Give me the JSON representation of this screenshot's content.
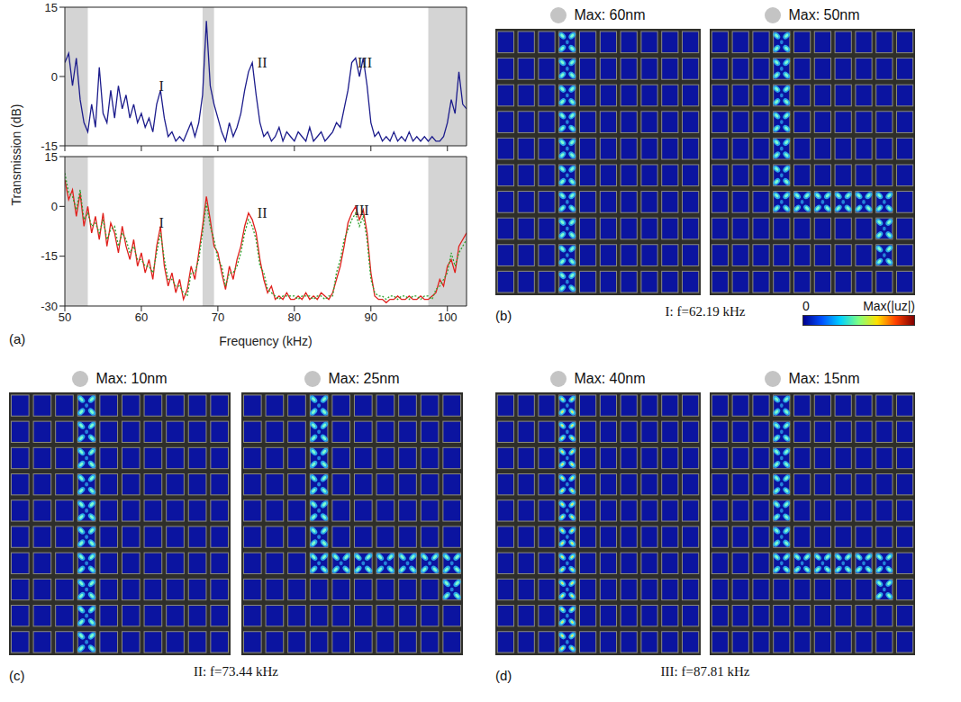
{
  "chart_data": [
    {
      "type": "line",
      "x": [
        50,
        50.5,
        51,
        51.5,
        52,
        52.5,
        53,
        53.5,
        54,
        54.5,
        55,
        55.5,
        56,
        56.5,
        57,
        57.5,
        58,
        58.5,
        59,
        59.5,
        60,
        60.5,
        61,
        61.5,
        62,
        62.5,
        63,
        63.5,
        64,
        64.5,
        65,
        65.5,
        66,
        66.5,
        67,
        67.5,
        68,
        68.5,
        69,
        69.5,
        70,
        70.5,
        71,
        71.5,
        72,
        72.5,
        73,
        73.5,
        74,
        74.5,
        75,
        75.5,
        76,
        76.5,
        77,
        77.5,
        78,
        78.5,
        79,
        79.5,
        80,
        80.5,
        81,
        81.5,
        82,
        82.5,
        83,
        83.5,
        84,
        84.5,
        85,
        85.5,
        86,
        86.5,
        87,
        87.5,
        88,
        88.5,
        89,
        89.5,
        90,
        90.5,
        91,
        91.5,
        92,
        92.5,
        93,
        93.5,
        94,
        94.5,
        95,
        95.5,
        96,
        96.5,
        97,
        97.5,
        98,
        98.5,
        99,
        99.5,
        100,
        100.5,
        101,
        101.5,
        102,
        102.5
      ],
      "series": [
        {
          "color": "#1c1c8c",
          "line_style": "solid",
          "values": [
            3,
            5,
            -2,
            4,
            -5,
            -10,
            -12,
            -6,
            -11,
            2,
            -8,
            -10,
            -3,
            -9,
            -2,
            -7,
            -4,
            -9,
            -6,
            -10,
            -8,
            -11,
            -9,
            -12,
            -6,
            -3,
            -9,
            -13,
            -12,
            -14,
            -13,
            -14,
            -12,
            -10,
            -13,
            -10,
            -4,
            12,
            -2,
            -6,
            -9,
            -12,
            -14,
            -10,
            -13,
            -11,
            -8,
            -3,
            1,
            3,
            -4,
            -10,
            -13,
            -12,
            -14,
            -13,
            -11,
            -14,
            -12,
            -13,
            -14,
            -12,
            -13,
            -14,
            -11,
            -14,
            -13,
            -12,
            -14,
            -13,
            -12,
            -10,
            -11,
            -7,
            -3,
            3,
            4,
            0,
            4,
            -2,
            -10,
            -13,
            -12,
            -14,
            -13,
            -14,
            -12,
            -14,
            -13,
            -14,
            -12,
            -14,
            -13,
            -14,
            -13,
            -14,
            -13,
            -14,
            -14,
            -13,
            -10,
            -5,
            -8,
            1,
            -6,
            -7
          ]
        }
      ],
      "xlim": [
        50,
        102.5
      ],
      "xticks": [
        50,
        60,
        70,
        80,
        90,
        100
      ],
      "ylim": [
        -15,
        15
      ],
      "yticks": [
        -15,
        0,
        15
      ],
      "tick_labels": "y",
      "ylabel": "Transmission (dB)",
      "shaded_ranges": [
        [
          50,
          53
        ],
        [
          68,
          69.5
        ],
        [
          97.5,
          102.5
        ]
      ],
      "annotations": [
        {
          "text": "I",
          "x": 62.6,
          "y": -2
        },
        {
          "text": "II",
          "x": 75.8,
          "y": 3
        },
        {
          "text": "III",
          "x": 89.2,
          "y": 3
        }
      ]
    },
    {
      "type": "line",
      "x": [
        50,
        50.5,
        51,
        51.5,
        52,
        52.5,
        53,
        53.5,
        54,
        54.5,
        55,
        55.5,
        56,
        56.5,
        57,
        57.5,
        58,
        58.5,
        59,
        59.5,
        60,
        60.5,
        61,
        61.5,
        62,
        62.5,
        63,
        63.5,
        64,
        64.5,
        65,
        65.5,
        66,
        66.5,
        67,
        67.5,
        68,
        68.5,
        69,
        69.5,
        70,
        70.5,
        71,
        71.5,
        72,
        72.5,
        73,
        73.5,
        74,
        74.5,
        75,
        75.5,
        76,
        76.5,
        77,
        77.5,
        78,
        78.5,
        79,
        79.5,
        80,
        80.5,
        81,
        81.5,
        82,
        82.5,
        83,
        83.5,
        84,
        84.5,
        85,
        85.5,
        86,
        86.5,
        87,
        87.5,
        88,
        88.5,
        89,
        89.5,
        90,
        90.5,
        91,
        91.5,
        92,
        92.5,
        93,
        93.5,
        94,
        94.5,
        95,
        95.5,
        96,
        96.5,
        97,
        97.5,
        98,
        98.5,
        99,
        99.5,
        100,
        100.5,
        101,
        101.5,
        102,
        102.5
      ],
      "series": [
        {
          "color": "#e0201c",
          "line_style": "solid",
          "values": [
            8,
            2,
            5,
            -3,
            4,
            -6,
            0,
            -8,
            -3,
            -10,
            -2,
            -12,
            -5,
            -8,
            -14,
            -6,
            -12,
            -16,
            -10,
            -18,
            -14,
            -20,
            -16,
            -22,
            -12,
            -6,
            -18,
            -24,
            -20,
            -26,
            -22,
            -28,
            -25,
            -18,
            -22,
            -14,
            -6,
            3,
            -4,
            -12,
            -14,
            -20,
            -25,
            -18,
            -22,
            -16,
            -12,
            -6,
            -2,
            -4,
            -8,
            -16,
            -22,
            -26,
            -24,
            -28,
            -27,
            -28,
            -26,
            -28,
            -28,
            -27,
            -28,
            -26,
            -28,
            -27,
            -28,
            -26,
            -27,
            -28,
            -26,
            -22,
            -18,
            -12,
            -5,
            -2,
            0,
            -4,
            -1,
            -8,
            -20,
            -27,
            -28,
            -28,
            -29,
            -28,
            -28,
            -27,
            -28,
            -28,
            -27,
            -28,
            -28,
            -27,
            -28,
            -28,
            -27,
            -26,
            -22,
            -24,
            -18,
            -16,
            -20,
            -12,
            -10,
            -8
          ]
        },
        {
          "color": "#2ca02c",
          "line_style": "dotted",
          "values": [
            10,
            4,
            3,
            -1,
            5,
            -4,
            -2,
            -6,
            -5,
            -8,
            -4,
            -10,
            -7,
            -6,
            -12,
            -8,
            -10,
            -14,
            -12,
            -16,
            -16,
            -18,
            -18,
            -20,
            -14,
            -8,
            -16,
            -22,
            -22,
            -24,
            -24,
            -26,
            -27,
            -20,
            -20,
            -16,
            -8,
            1,
            -6,
            -10,
            -16,
            -18,
            -24,
            -20,
            -20,
            -18,
            -14,
            -8,
            -4,
            -6,
            -10,
            -18,
            -20,
            -25,
            -26,
            -27,
            -28,
            -27,
            -27,
            -27,
            -27,
            -28,
            -27,
            -27,
            -27,
            -28,
            -27,
            -27,
            -28,
            -27,
            -27,
            -20,
            -16,
            -10,
            -7,
            -4,
            -2,
            -6,
            -3,
            -10,
            -22,
            -26,
            -27,
            -27,
            -28,
            -27,
            -27,
            -28,
            -27,
            -27,
            -28,
            -27,
            -27,
            -28,
            -27,
            -27,
            -28,
            -25,
            -24,
            -22,
            -20,
            -14,
            -18,
            -14,
            -12,
            -10
          ]
        }
      ],
      "xlim": [
        50,
        102.5
      ],
      "xticks": [
        50,
        60,
        70,
        80,
        90,
        100
      ],
      "ylim": [
        -30,
        15
      ],
      "yticks": [
        -30,
        -15,
        0,
        15
      ],
      "xlabel": "Frequency (kHz)",
      "shaded_ranges": [
        [
          50,
          53
        ],
        [
          68,
          69.5
        ],
        [
          97.5,
          102.5
        ]
      ],
      "annotations": [
        {
          "text": "I",
          "x": 62.6,
          "y": -5
        },
        {
          "text": "II",
          "x": 75.8,
          "y": -2
        },
        {
          "text": "III",
          "x": 88.8,
          "y": -1
        }
      ]
    }
  ],
  "figure": {
    "panel_a_letter": "(a)",
    "field_maps": [
      {
        "letter": "(b)",
        "caption": "I: f=62.19 kHz",
        "max_labels": [
          "Max: 60nm",
          "Max: 50nm"
        ]
      },
      {
        "letter": "(c)",
        "caption": "II: f=73.44 kHz",
        "max_labels": [
          "Max: 10nm",
          "Max: 25nm"
        ]
      },
      {
        "letter": "(d)",
        "caption": "III: f=87.81 kHz",
        "max_labels": [
          "Max: 40nm",
          "Max: 15nm"
        ]
      }
    ],
    "colorbar": {
      "min_label": "0",
      "max_label": "Max(|uz|)"
    }
  }
}
